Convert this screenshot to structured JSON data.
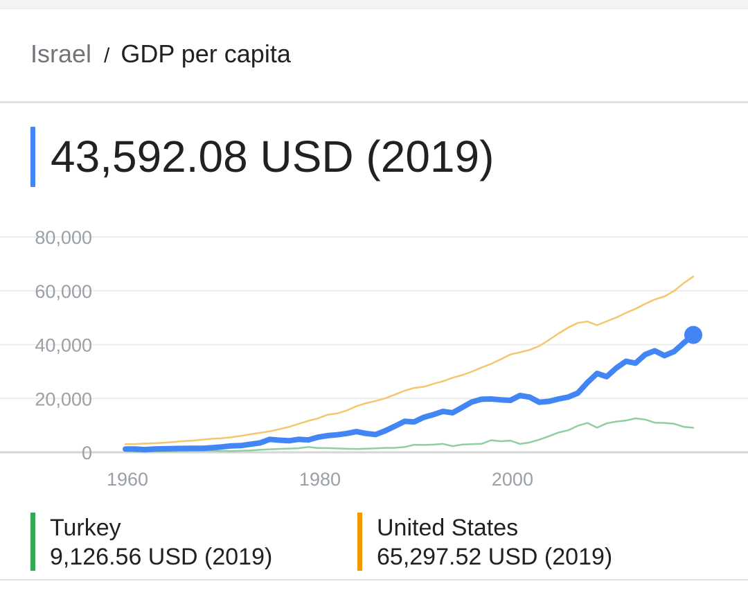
{
  "breadcrumb": {
    "country": "Israel",
    "separator": "/",
    "metric": "GDP per capita"
  },
  "headline": {
    "value": "43,592.08 USD (2019)"
  },
  "legend": [
    {
      "name": "Turkey",
      "value": "9,126.56 USD (2019)",
      "color": "#34a853"
    },
    {
      "name": "United States",
      "value": "65,297.52 USD (2019)",
      "color": "#f29900"
    }
  ],
  "chart_data": {
    "type": "line",
    "x_ticks": [
      "1960",
      "1980",
      "2000"
    ],
    "y_ticks": [
      "0",
      "20,000",
      "40,000",
      "60,000",
      "80,000"
    ],
    "xlim": [
      1960,
      2019
    ],
    "ylim": [
      0,
      80000
    ],
    "grid": true,
    "series": [
      {
        "name": "Israel",
        "color": "#4285f4",
        "highlight_last": true,
        "x": [
          1960,
          1961,
          1962,
          1963,
          1964,
          1965,
          1966,
          1967,
          1968,
          1969,
          1970,
          1971,
          1972,
          1973,
          1974,
          1975,
          1976,
          1977,
          1978,
          1979,
          1980,
          1981,
          1982,
          1983,
          1984,
          1985,
          1986,
          1987,
          1988,
          1989,
          1990,
          1991,
          1992,
          1993,
          1994,
          1995,
          1996,
          1997,
          1998,
          1999,
          2000,
          2001,
          2002,
          2003,
          2004,
          2005,
          2006,
          2007,
          2008,
          2009,
          2010,
          2011,
          2012,
          2013,
          2014,
          2015,
          2016,
          2017,
          2018,
          2019
        ],
        "y": [
          1200,
          1200,
          1000,
          1200,
          1300,
          1400,
          1450,
          1500,
          1500,
          1700,
          2000,
          2400,
          2500,
          3000,
          3500,
          4800,
          4500,
          4300,
          4800,
          4600,
          5600,
          6200,
          6500,
          7000,
          7700,
          7000,
          6600,
          8000,
          9700,
          11500,
          11300,
          13000,
          14000,
          15200,
          14700,
          16700,
          18700,
          19700,
          19800,
          19500,
          19300,
          21100,
          20500,
          18600,
          18900,
          19800,
          20500,
          22000,
          25900,
          29300,
          28100,
          31300,
          33800,
          33100,
          36300,
          37700,
          35900,
          37400,
          40600,
          43592
        ]
      },
      {
        "name": "United States",
        "color": "#f5c66b",
        "x": [
          1960,
          1961,
          1962,
          1963,
          1964,
          1965,
          1966,
          1967,
          1968,
          1969,
          1970,
          1971,
          1972,
          1973,
          1974,
          1975,
          1976,
          1977,
          1978,
          1979,
          1980,
          1981,
          1982,
          1983,
          1984,
          1985,
          1986,
          1987,
          1988,
          1989,
          1990,
          1991,
          1992,
          1993,
          1994,
          1995,
          1996,
          1997,
          1998,
          1999,
          2000,
          2001,
          2002,
          2003,
          2004,
          2005,
          2006,
          2007,
          2008,
          2009,
          2010,
          2011,
          2012,
          2013,
          2014,
          2015,
          2016,
          2017,
          2018,
          2019
        ],
        "y": [
          3007,
          3067,
          3244,
          3375,
          3574,
          3828,
          4146,
          4336,
          4696,
          5032,
          5234,
          5609,
          6094,
          6726,
          7226,
          7801,
          8592,
          9453,
          10565,
          11674,
          12575,
          13976,
          14434,
          15544,
          17121,
          18237,
          19071,
          20039,
          21417,
          22857,
          23889,
          24342,
          25419,
          26387,
          27695,
          28691,
          29968,
          31459,
          32854,
          34515,
          36335,
          37133,
          38023,
          39497,
          41712,
          44115,
          46299,
          48050,
          48570,
          47195,
          48651,
          50066,
          51784,
          53291,
          55124,
          56763,
          57867,
          59915,
          62805,
          65297
        ]
      },
      {
        "name": "Turkey",
        "color": "#8fcf9f",
        "x": [
          1960,
          1961,
          1962,
          1963,
          1964,
          1965,
          1966,
          1967,
          1968,
          1969,
          1970,
          1971,
          1972,
          1973,
          1974,
          1975,
          1976,
          1977,
          1978,
          1979,
          1980,
          1981,
          1982,
          1983,
          1984,
          1985,
          1986,
          1987,
          1988,
          1989,
          1990,
          1991,
          1992,
          1993,
          1994,
          1995,
          1996,
          1997,
          1998,
          1999,
          2000,
          2001,
          2002,
          2003,
          2004,
          2005,
          2006,
          2007,
          2008,
          2009,
          2010,
          2011,
          2012,
          2013,
          2014,
          2015,
          2016,
          2017,
          2018,
          2019
        ],
        "y": [
          509,
          283,
          309,
          350,
          371,
          386,
          444,
          481,
          542,
          570,
          494,
          453,
          557,
          683,
          930,
          1130,
          1256,
          1384,
          1522,
          2000,
          1564,
          1579,
          1444,
          1317,
          1236,
          1369,
          1479,
          1648,
          1683,
          1953,
          2794,
          2736,
          2843,
          3134,
          2278,
          2880,
          3047,
          3144,
          4482,
          4107,
          4337,
          3119,
          3660,
          4718,
          5970,
          7357,
          8174,
          9852,
          10905,
          9154,
          10742,
          11420,
          11795,
          12614,
          12158,
          11006,
          10895,
          10590,
          9456,
          9127
        ]
      }
    ]
  }
}
